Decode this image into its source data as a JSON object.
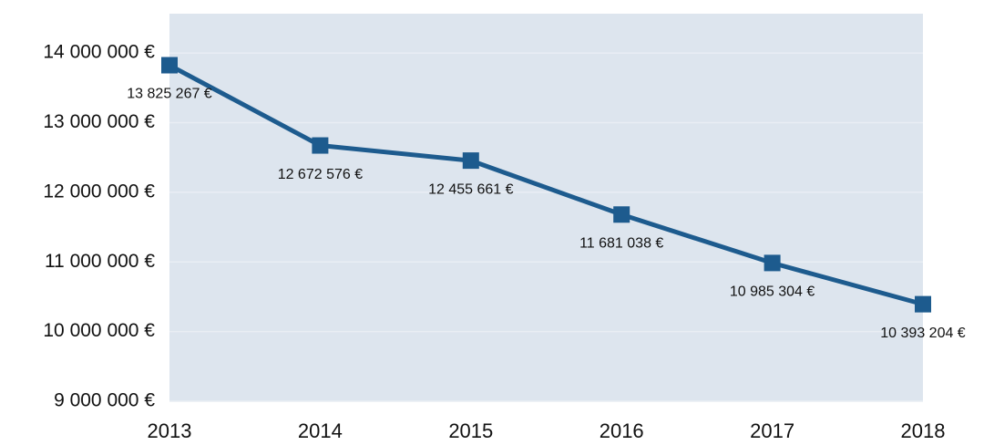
{
  "chart_data": {
    "type": "line",
    "categories": [
      "2013",
      "2014",
      "2015",
      "2016",
      "2017",
      "2018"
    ],
    "series": [
      {
        "color": "#1d5b8e",
        "values": [
          13825267,
          12672576,
          12455661,
          11681038,
          10985304,
          10393204
        ],
        "value_labels": [
          "13 825 267  €",
          "12 672 576  €",
          "12 455 661  €",
          "11 681 038  €",
          "10 985 304  €",
          "10 393 204  €"
        ]
      }
    ],
    "ylim": [
      9000000,
      14500000
    ],
    "yticks": [
      {
        "value": 9000000,
        "label": "9 000 000  €"
      },
      {
        "value": 10000000,
        "label": "10 000 000  €"
      },
      {
        "value": 11000000,
        "label": "11 000 000  €"
      },
      {
        "value": 12000000,
        "label": "12 000 000  €"
      },
      {
        "value": 13000000,
        "label": "13 000 000  €"
      },
      {
        "value": 14000000,
        "label": "14 000 000  €"
      }
    ],
    "grid": true
  }
}
